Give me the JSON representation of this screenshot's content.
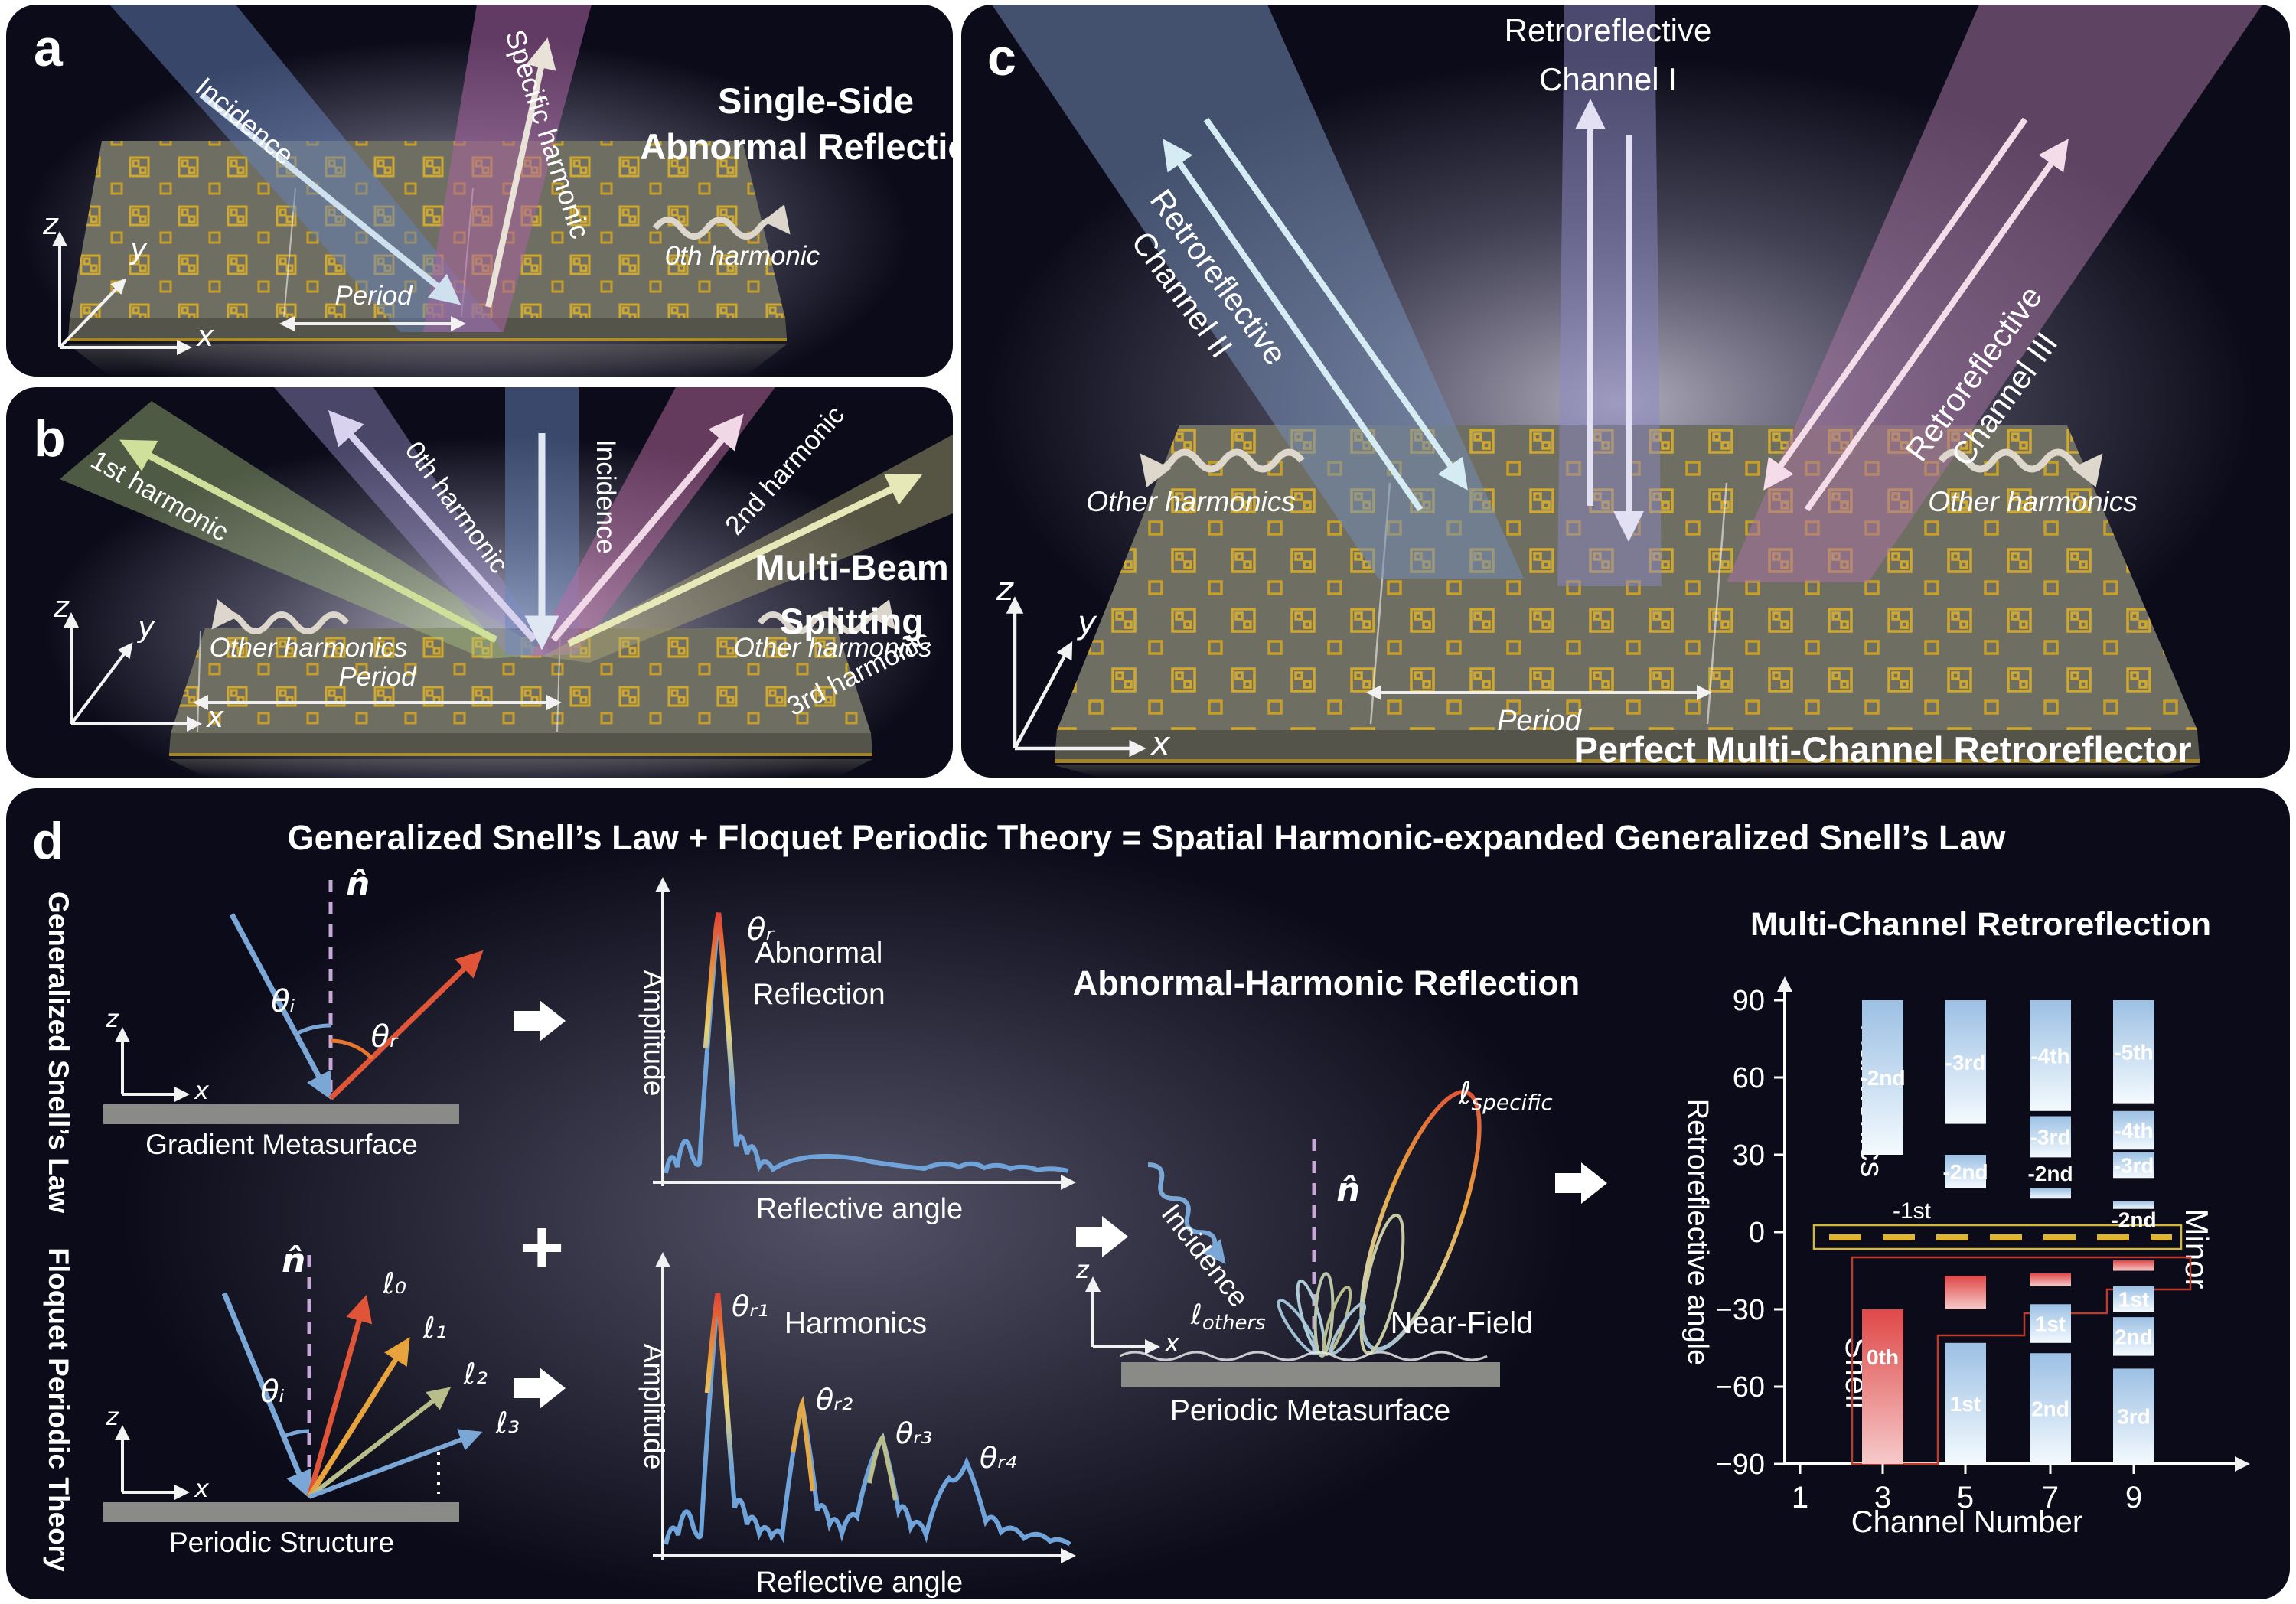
{
  "panel_a": {
    "label": "a",
    "title_line1": "Single-Side",
    "title_line2": "Abnormal Reflection",
    "incidence": "Incidence",
    "specific_harmonic": "Specific harmonic",
    "zeroth_harmonic": "0th harmonic",
    "period": "Period",
    "axis_z": "z",
    "axis_y": "y",
    "axis_x": "x"
  },
  "panel_b": {
    "label": "b",
    "title_line1": "Multi-Beam",
    "title_line2": "Splitting",
    "harmonic_1": "1st harmonic",
    "harmonic_0": "0th harmonic",
    "incidence": "Incidence",
    "harmonic_2": "2nd harmonic",
    "harmonic_3": "3rd harmonic",
    "other_harmonics_left": "Other harmonics",
    "other_harmonics_right": "Other harmonics",
    "period": "Period",
    "axis_z": "z",
    "axis_y": "y",
    "axis_x": "x"
  },
  "panel_c": {
    "label": "c",
    "title": "Perfect Multi-Channel Retroreflector",
    "channel_i_line1": "Retroreflective",
    "channel_i_line2": "Channel I",
    "channel_ii_line1": "Retroreflective",
    "channel_ii_line2": "Channel II",
    "channel_iii_line1": "Retroreflective",
    "channel_iii_line2": "Channel III",
    "other_harmonics_left": "Other harmonics",
    "other_harmonics_right": "Other harmonics",
    "period": "Period",
    "axis_z": "z",
    "axis_y": "y",
    "axis_x": "x"
  },
  "panel_d": {
    "label": "d",
    "title": "Generalized Snell’s Law + Floquet Periodic Theory = Spatial Harmonic-expanded Generalized Snell’s Law",
    "side_label_top": "Generalized Snell’s Law",
    "side_label_bottom": "Floquet Periodic Theory",
    "plus": "+",
    "gradient_diagram": {
      "normal": "n̂",
      "theta_i": "θᵢ",
      "theta_r": "θᵣ",
      "caption": "Gradient Metasurface",
      "axis_z": "z",
      "axis_x": "x"
    },
    "periodic_diagram": {
      "normal": "n̂",
      "theta_i": "θᵢ",
      "l0": "ℓ₀",
      "l1": "ℓ₁",
      "l2": "ℓ₂",
      "l3": "ℓ₃",
      "caption": "Periodic Structure",
      "axis_z": "z",
      "axis_x": "x"
    },
    "plot_abnormal": {
      "ylabel": "Amplitude",
      "xlabel": "Reflective angle",
      "peak_label": "θᵣ",
      "title_line1": "Abnormal",
      "title_line2": "Reflection"
    },
    "plot_harmonics": {
      "ylabel": "Amplitude",
      "xlabel": "Reflective angle",
      "peak_1": "θᵣ₁",
      "peak_2": "θᵣ₂",
      "peak_3": "θᵣ₃",
      "peak_4": "θᵣ₄",
      "title": "Harmonics"
    },
    "ahr": {
      "title": "Abnormal-Harmonic Reflection",
      "incidence": "Incidence",
      "normal": "n̂",
      "l_specific_base": "ℓ",
      "l_specific_sub": "specific",
      "l_others_base": "ℓ",
      "l_others_sub": "others",
      "near_field": "Near-Field",
      "caption": "Periodic Metasurface",
      "axis_z": "z",
      "axis_x": "x"
    }
  },
  "chart_data": {
    "type": "bar",
    "title": "Multi-Channel Retroreflection",
    "xlabel": "Channel Number",
    "ylabel": "Retroreflective angle",
    "x_ticks": [
      1,
      3,
      5,
      7,
      9
    ],
    "y_ticks": [
      90,
      60,
      30,
      0,
      -30,
      -60,
      -90
    ],
    "ylim": [
      -90,
      90
    ],
    "legend": {
      "harmonics": "Harmonics",
      "snell": "Snell",
      "minor": "Minor"
    },
    "minus_first_label": "-1st",
    "channels": [
      {
        "channel": 1,
        "segments": []
      },
      {
        "channel": 3,
        "segments": [
          {
            "order": "-2nd",
            "from": 30,
            "to": 90,
            "type": "harmonic"
          },
          {
            "order": "0th",
            "from": -90,
            "to": -30,
            "type": "snell",
            "label_pos": "upper"
          }
        ]
      },
      {
        "channel": 5,
        "segments": [
          {
            "order": "-3rd",
            "from": 42,
            "to": 90,
            "type": "harmonic"
          },
          {
            "order": "-2nd",
            "from": 17,
            "to": 30,
            "type": "harmonic"
          },
          {
            "order": "",
            "from": -30,
            "to": -17,
            "type": "snell"
          },
          {
            "order": "1st",
            "from": -90,
            "to": -43,
            "type": "harmonic"
          }
        ]
      },
      {
        "channel": 7,
        "segments": [
          {
            "order": "-4th",
            "from": 47,
            "to": 90,
            "type": "harmonic"
          },
          {
            "order": "-3rd",
            "from": 29,
            "to": 45,
            "type": "harmonic"
          },
          {
            "order": "-2nd",
            "from": 13,
            "to": 17,
            "type": "harmonic",
            "label_pos": "above"
          },
          {
            "order": "",
            "from": -21,
            "to": -16,
            "type": "snell"
          },
          {
            "order": "1st",
            "from": -43,
            "to": -28,
            "type": "harmonic"
          },
          {
            "order": "2nd",
            "from": -90,
            "to": -47,
            "type": "harmonic"
          }
        ]
      },
      {
        "channel": 9,
        "segments": [
          {
            "order": "-5th",
            "from": 50,
            "to": 90,
            "type": "harmonic"
          },
          {
            "order": "-4th",
            "from": 32,
            "to": 47,
            "type": "harmonic"
          },
          {
            "order": "-3rd",
            "from": 21,
            "to": 31,
            "type": "harmonic"
          },
          {
            "order": "-2nd",
            "from": 9,
            "to": 12,
            "type": "harmonic",
            "label_pos": "below"
          },
          {
            "order": "",
            "from": -15,
            "to": -11,
            "type": "snell"
          },
          {
            "order": "1st",
            "from": -31,
            "to": -21,
            "type": "harmonic"
          },
          {
            "order": "2nd",
            "from": -48,
            "to": -33,
            "type": "harmonic"
          },
          {
            "order": "3rd",
            "from": -90,
            "to": -53,
            "type": "harmonic"
          }
        ]
      }
    ],
    "colors": {
      "harmonic_top": "#9cc0e4",
      "harmonic_bottom": "#f4fafe",
      "snell_top": "#e04848",
      "snell_bottom": "#f6caca",
      "harmonic_label": "#3a72b0",
      "snell_label": "#c63636",
      "minus_first": "#e0b52f",
      "minor": "#e8a33d",
      "axis": "#ffffff"
    }
  }
}
